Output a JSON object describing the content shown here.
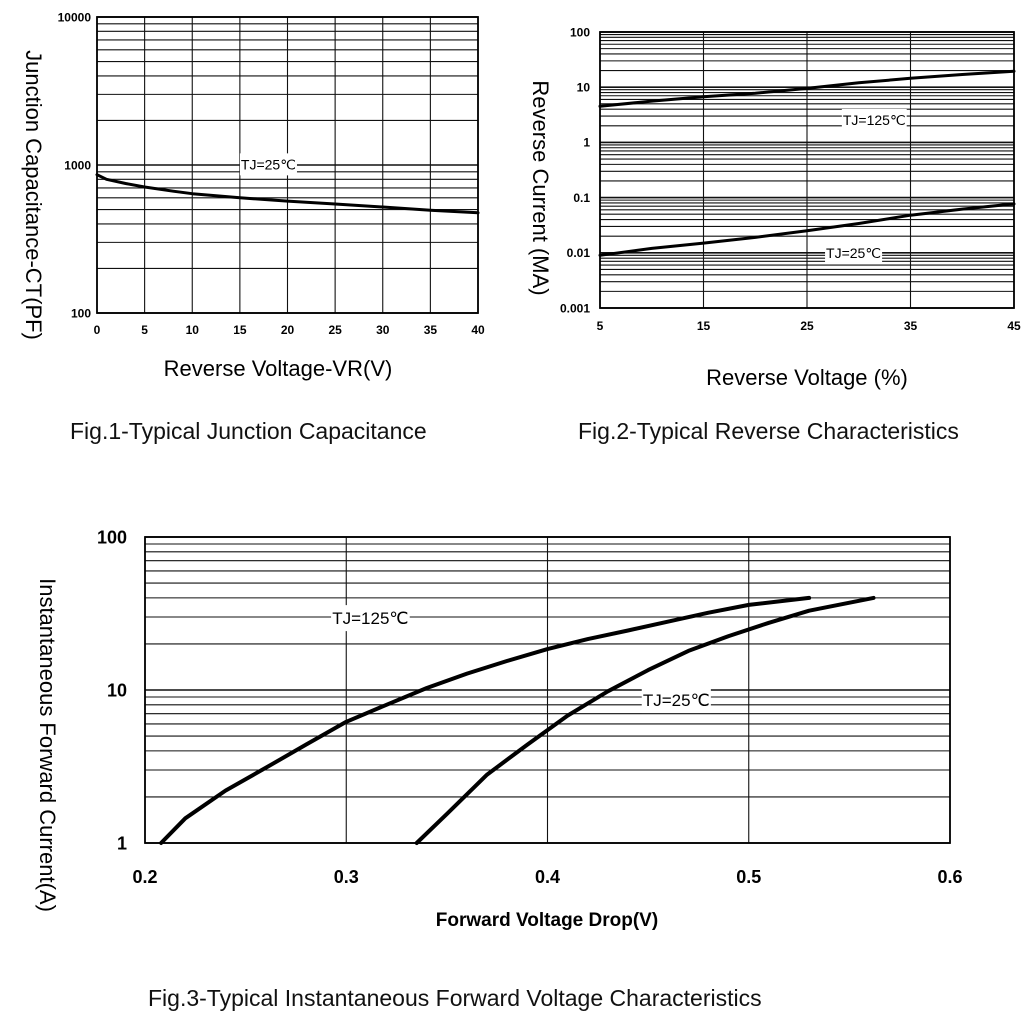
{
  "colors": {
    "ink": "#000000",
    "grid": "#111111",
    "background": "#ffffff"
  },
  "chart_data": [
    {
      "id": "fig1",
      "type": "line",
      "caption": "Fig.1-Typical Junction Capacitance",
      "xlabel": "Reverse Voltage-VR(V)",
      "ylabel": "Junction Capacitance-CT(PF)",
      "xscale": "linear",
      "yscale": "log",
      "xlim": [
        0,
        40
      ],
      "ylim": [
        100,
        10000
      ],
      "xticks": [
        0,
        5,
        10,
        15,
        20,
        25,
        30,
        35,
        40
      ],
      "xtick_labels": [
        "0",
        "5",
        "10",
        "15",
        "20",
        "25",
        "30",
        "35",
        "40"
      ],
      "yticks": [
        100,
        1000,
        10000
      ],
      "ytick_labels": [
        "100",
        "1000",
        "10000"
      ],
      "series": [
        {
          "name": "TJ=25℃",
          "label": "TJ=25℃",
          "label_at": [
            18,
            1010
          ],
          "x": [
            0,
            1,
            3,
            5,
            8,
            10,
            15,
            20,
            25,
            30,
            35,
            40
          ],
          "y": [
            860,
            800,
            750,
            710,
            665,
            640,
            600,
            570,
            545,
            520,
            495,
            475
          ]
        }
      ]
    },
    {
      "id": "fig2",
      "type": "line",
      "caption": "Fig.2-Typical Reverse Characteristics",
      "xlabel": "Reverse Voltage (%)",
      "ylabel": "Reverse Current (MA)",
      "xscale": "linear",
      "yscale": "log",
      "xlim": [
        5,
        45
      ],
      "ylim": [
        0.001,
        100
      ],
      "xticks": [
        5,
        15,
        25,
        35,
        45
      ],
      "xtick_labels": [
        "5",
        "15",
        "25",
        "35",
        "45"
      ],
      "yticks": [
        0.001,
        0.01,
        0.1,
        1,
        10,
        100
      ],
      "ytick_labels": [
        "0.001",
        "0.01",
        "0.1",
        "1",
        "10",
        "100"
      ],
      "series": [
        {
          "name": "TJ=125℃",
          "label": "TJ=125℃",
          "label_at": [
            31.5,
            2.55
          ],
          "x": [
            5,
            10,
            15,
            20,
            25,
            30,
            35,
            40,
            45
          ],
          "y": [
            4.5,
            5.6,
            6.7,
            7.8,
            9.5,
            12,
            14.5,
            17,
            19.5
          ]
        },
        {
          "name": "TJ=25℃",
          "label": "TJ=25℃",
          "label_at": [
            29.5,
            0.01
          ],
          "x": [
            5,
            10,
            15,
            20,
            25,
            30,
            35,
            40,
            45
          ],
          "y": [
            0.009,
            0.012,
            0.015,
            0.019,
            0.025,
            0.034,
            0.048,
            0.062,
            0.077
          ]
        }
      ]
    },
    {
      "id": "fig3",
      "type": "line",
      "caption": "Fig.3-Typical Instantaneous Forward Voltage Characteristics",
      "xlabel": "Forward Voltage Drop(V)",
      "ylabel": "Instantaneous Forward Current(A)",
      "xscale": "linear",
      "yscale": "log",
      "xlim": [
        0.2,
        0.6
      ],
      "ylim": [
        1,
        100
      ],
      "xticks": [
        0.2,
        0.3,
        0.4,
        0.5,
        0.6
      ],
      "xtick_labels": [
        "0.2",
        "0.3",
        "0.4",
        "0.5",
        "0.6"
      ],
      "yticks": [
        1,
        10,
        100
      ],
      "ytick_labels": [
        "1",
        "10",
        "100"
      ],
      "series": [
        {
          "name": "TJ=125℃",
          "label": "TJ=125℃",
          "label_at": [
            0.312,
            29.5
          ],
          "x": [
            0.208,
            0.22,
            0.24,
            0.26,
            0.28,
            0.3,
            0.32,
            0.34,
            0.36,
            0.38,
            0.4,
            0.42,
            0.44,
            0.46,
            0.48,
            0.5,
            0.53
          ],
          "y": [
            1.0,
            1.45,
            2.2,
            3.1,
            4.4,
            6.2,
            8.0,
            10.3,
            12.8,
            15.5,
            18.5,
            21.5,
            24.5,
            28,
            32,
            36,
            40
          ]
        },
        {
          "name": "TJ=25℃",
          "label": "TJ=25℃",
          "label_at": [
            0.464,
            8.6
          ],
          "x": [
            0.335,
            0.35,
            0.37,
            0.39,
            0.41,
            0.43,
            0.45,
            0.47,
            0.49,
            0.51,
            0.53,
            0.562
          ],
          "y": [
            1.0,
            1.55,
            2.8,
            4.4,
            6.8,
            9.8,
            13.5,
            18,
            22.5,
            27.5,
            33,
            40
          ]
        }
      ]
    }
  ]
}
